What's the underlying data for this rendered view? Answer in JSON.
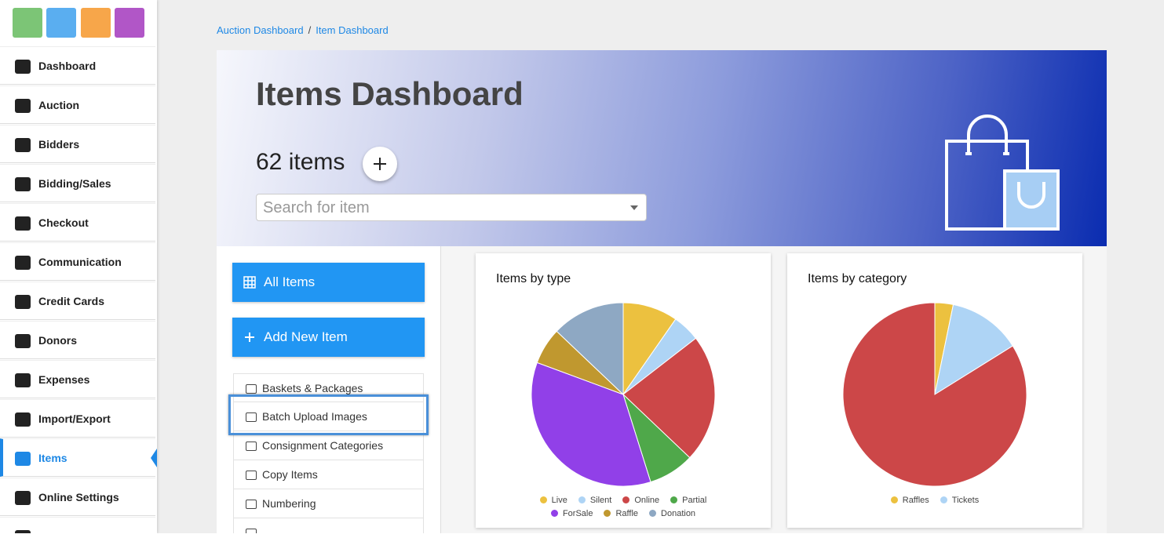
{
  "sidebar": {
    "nav": [
      "Dashboard",
      "Auction",
      "Bidders",
      "Bidding/Sales",
      "Checkout",
      "Communication",
      "Credit Cards",
      "Donors",
      "Expenses",
      "Import/Export",
      "Items",
      "Online Settings"
    ]
  },
  "breadcrumb": {
    "items": [
      "Auction Dashboard",
      "Item Dashboard"
    ],
    "separator": "/"
  },
  "header": {
    "title": "Items Dashboard",
    "count": "62 items",
    "search_placeholder": "Search for item"
  },
  "actions": [
    "All Items",
    "Add New Item"
  ],
  "menu": [
    "Baskets & Packages",
    "Batch Upload Images",
    "Consignment Categories",
    "Copy Items",
    "Numbering"
  ],
  "chart_data": [
    {
      "type": "pie",
      "title": "Items by type",
      "categories": [
        "Live",
        "Silent",
        "Online",
        "Partial",
        "ForSale",
        "Raffle",
        "Donation"
      ],
      "values": [
        6,
        3,
        14,
        5,
        22,
        4,
        8
      ],
      "colors": [
        "#ecc13f",
        "#aed4f5",
        "#cc4748",
        "#4fa84a",
        "#9140e8",
        "#c0982f",
        "#8ea8c3"
      ]
    },
    {
      "type": "pie",
      "title": "Items by category",
      "categories": [
        "Raffles",
        "Tickets",
        null
      ],
      "values": [
        2,
        8,
        52
      ],
      "colors": [
        "#ecc13f",
        "#aed4f5",
        "#cc4748"
      ]
    }
  ]
}
